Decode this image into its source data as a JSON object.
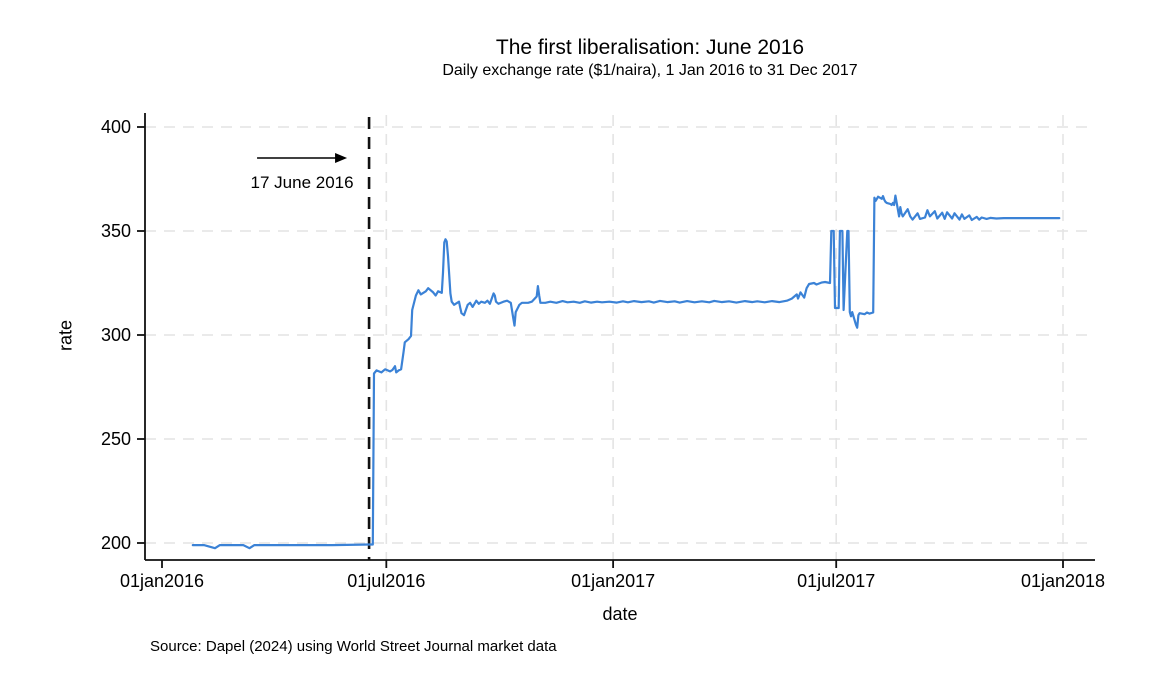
{
  "page": {
    "background": "#ffffff"
  },
  "chart_data": {
    "type": "line",
    "title": "The first liberalisation: June 2016",
    "subtitle": "Daily exchange rate ($1/naira), 1 Jan 2016 to 31 Dec 2017",
    "xlabel": "date",
    "ylabel": "rate",
    "source_note": "Source: Dapel (2024) using World Street Journal market data",
    "x_tick_labels": [
      "01jan2016",
      "01jul2016",
      "01jan2017",
      "01jul2017",
      "01jan2018"
    ],
    "x_tick_dates": [
      "2016-01-01",
      "2016-07-01",
      "2017-01-01",
      "2017-07-01",
      "2018-01-01"
    ],
    "x_tick_grid": [
      false,
      true,
      true,
      true,
      true
    ],
    "y_ticks": [
      200,
      250,
      300,
      350,
      400
    ],
    "ylim": [
      192,
      406
    ],
    "grid": true,
    "legend": "none",
    "colors": {
      "line": "#3b82d6",
      "grid": "#e4e4e4",
      "axis": "#111111",
      "event_line": "#111111",
      "text": "#000000"
    },
    "event_line": {
      "date": "2016-06-17",
      "style": "dashed"
    },
    "annotation": {
      "text": "17 June 2016",
      "arrow": "right"
    },
    "series": [
      {
        "name": "rate",
        "points": [
          [
            "2016-01-26",
            199
          ],
          [
            "2016-02-04",
            199
          ],
          [
            "2016-02-13",
            197.5
          ],
          [
            "2016-02-17",
            199
          ],
          [
            "2016-03-07",
            199
          ],
          [
            "2016-03-12",
            197.5
          ],
          [
            "2016-03-16",
            199
          ],
          [
            "2016-04-12",
            199
          ],
          [
            "2016-05-18",
            199
          ],
          [
            "2016-06-17",
            199.3
          ],
          [
            "2016-06-20",
            199.3
          ],
          [
            "2016-06-21",
            281.5
          ],
          [
            "2016-06-23",
            283
          ],
          [
            "2016-06-27",
            282
          ],
          [
            "2016-06-30",
            283.5
          ],
          [
            "2016-07-04",
            282.5
          ],
          [
            "2016-07-06",
            283.2
          ],
          [
            "2016-07-08",
            285
          ],
          [
            "2016-07-09",
            282
          ],
          [
            "2016-07-11",
            283
          ],
          [
            "2016-07-13",
            283.5
          ],
          [
            "2016-07-15",
            292
          ],
          [
            "2016-07-16",
            296.5
          ],
          [
            "2016-07-19",
            298
          ],
          [
            "2016-07-21",
            299.5
          ],
          [
            "2016-07-22",
            312
          ],
          [
            "2016-07-25",
            319
          ],
          [
            "2016-07-27",
            321.5
          ],
          [
            "2016-07-29",
            319.5
          ],
          [
            "2016-08-02",
            321
          ],
          [
            "2016-08-04",
            322.5
          ],
          [
            "2016-08-08",
            320.5
          ],
          [
            "2016-08-10",
            319
          ],
          [
            "2016-08-12",
            321
          ],
          [
            "2016-08-15",
            320.3
          ],
          [
            "2016-08-16",
            330
          ],
          [
            "2016-08-17",
            344.5
          ],
          [
            "2016-08-18",
            346
          ],
          [
            "2016-08-19",
            345
          ],
          [
            "2016-08-20",
            338
          ],
          [
            "2016-08-22",
            320
          ],
          [
            "2016-08-23",
            316
          ],
          [
            "2016-08-25",
            314.5
          ],
          [
            "2016-08-29",
            316
          ],
          [
            "2016-08-30",
            313
          ],
          [
            "2016-08-31",
            310.5
          ],
          [
            "2016-09-02",
            309.5
          ],
          [
            "2016-09-05",
            314.5
          ],
          [
            "2016-09-07",
            315.5
          ],
          [
            "2016-09-09",
            313.5
          ],
          [
            "2016-09-12",
            316.5
          ],
          [
            "2016-09-14",
            315
          ],
          [
            "2016-09-16",
            316
          ],
          [
            "2016-09-19",
            315.5
          ],
          [
            "2016-09-21",
            316.5
          ],
          [
            "2016-09-23",
            315
          ],
          [
            "2016-09-26",
            320
          ],
          [
            "2016-09-27",
            319
          ],
          [
            "2016-09-28",
            316
          ],
          [
            "2016-09-30",
            315
          ],
          [
            "2016-10-04",
            316
          ],
          [
            "2016-10-07",
            316.5
          ],
          [
            "2016-10-10",
            315.5
          ],
          [
            "2016-10-12",
            308
          ],
          [
            "2016-10-13",
            304.5
          ],
          [
            "2016-10-14",
            311
          ],
          [
            "2016-10-17",
            314.5
          ],
          [
            "2016-10-19",
            315.5
          ],
          [
            "2016-10-24",
            315.5
          ],
          [
            "2016-10-27",
            316
          ],
          [
            "2016-10-31",
            318.5
          ],
          [
            "2016-11-01",
            323.5
          ],
          [
            "2016-11-02",
            319
          ],
          [
            "2016-11-03",
            315.5
          ],
          [
            "2016-11-07",
            315.5
          ],
          [
            "2016-11-11",
            316
          ],
          [
            "2016-11-16",
            315.5
          ],
          [
            "2016-11-21",
            316.3
          ],
          [
            "2016-11-25",
            315.7
          ],
          [
            "2016-11-30",
            316
          ],
          [
            "2016-12-05",
            315.5
          ],
          [
            "2016-12-09",
            316.2
          ],
          [
            "2016-12-14",
            315.6
          ],
          [
            "2016-12-19",
            316
          ],
          [
            "2016-12-23",
            315.7
          ],
          [
            "2016-12-29",
            316
          ],
          [
            "2017-01-04",
            315.6
          ],
          [
            "2017-01-09",
            316.2
          ],
          [
            "2017-01-13",
            315.7
          ],
          [
            "2017-01-18",
            316.3
          ],
          [
            "2017-01-24",
            315.8
          ],
          [
            "2017-01-30",
            316.2
          ],
          [
            "2017-02-03",
            315.6
          ],
          [
            "2017-02-08",
            316.4
          ],
          [
            "2017-02-14",
            315.8
          ],
          [
            "2017-02-20",
            316.2
          ],
          [
            "2017-02-24",
            315.6
          ],
          [
            "2017-03-02",
            316.3
          ],
          [
            "2017-03-08",
            315.7
          ],
          [
            "2017-03-14",
            316.2
          ],
          [
            "2017-03-20",
            315.7
          ],
          [
            "2017-03-24",
            316.4
          ],
          [
            "2017-03-30",
            315.8
          ],
          [
            "2017-04-05",
            316.2
          ],
          [
            "2017-04-11",
            315.6
          ],
          [
            "2017-04-18",
            316.3
          ],
          [
            "2017-04-24",
            315.8
          ],
          [
            "2017-04-28",
            316.2
          ],
          [
            "2017-05-04",
            315.7
          ],
          [
            "2017-05-10",
            316.3
          ],
          [
            "2017-05-16",
            315.8
          ],
          [
            "2017-05-22",
            316.5
          ],
          [
            "2017-05-26",
            317.5
          ],
          [
            "2017-05-30",
            319.5
          ],
          [
            "2017-05-31",
            317.5
          ],
          [
            "2017-06-02",
            320.5
          ],
          [
            "2017-06-05",
            318
          ],
          [
            "2017-06-07",
            322.5
          ],
          [
            "2017-06-09",
            324.5
          ],
          [
            "2017-06-13",
            325
          ],
          [
            "2017-06-15",
            324.3
          ],
          [
            "2017-06-19",
            325.2
          ],
          [
            "2017-06-22",
            325.5
          ],
          [
            "2017-06-26",
            325
          ],
          [
            "2017-06-27",
            350
          ],
          [
            "2017-06-29",
            350
          ],
          [
            "2017-06-30",
            313
          ],
          [
            "2017-07-03",
            313
          ],
          [
            "2017-07-04",
            350
          ],
          [
            "2017-07-06",
            350
          ],
          [
            "2017-07-07",
            312
          ],
          [
            "2017-07-10",
            350
          ],
          [
            "2017-07-11",
            350
          ],
          [
            "2017-07-12",
            311
          ],
          [
            "2017-07-13",
            309
          ],
          [
            "2017-07-14",
            311
          ],
          [
            "2017-07-17",
            305
          ],
          [
            "2017-07-18",
            303.5
          ],
          [
            "2017-07-19",
            309.5
          ],
          [
            "2017-07-20",
            310.5
          ],
          [
            "2017-07-24",
            310
          ],
          [
            "2017-07-26",
            310.8
          ],
          [
            "2017-07-28",
            310.3
          ],
          [
            "2017-07-31",
            310.8
          ],
          [
            "2017-08-01",
            366
          ],
          [
            "2017-08-02",
            364.5
          ],
          [
            "2017-08-03",
            365.5
          ],
          [
            "2017-08-04",
            366.5
          ],
          [
            "2017-08-07",
            365.5
          ],
          [
            "2017-08-08",
            366.8
          ],
          [
            "2017-08-09",
            365
          ],
          [
            "2017-08-10",
            364
          ],
          [
            "2017-08-11",
            363.5
          ],
          [
            "2017-08-14",
            363
          ],
          [
            "2017-08-15",
            362.5
          ],
          [
            "2017-08-16",
            363.5
          ],
          [
            "2017-08-17",
            362.5
          ],
          [
            "2017-08-18",
            367
          ],
          [
            "2017-08-21",
            357
          ],
          [
            "2017-08-22",
            361.5
          ],
          [
            "2017-08-23",
            358.5
          ],
          [
            "2017-08-24",
            357
          ],
          [
            "2017-08-28",
            360.5
          ],
          [
            "2017-08-30",
            357
          ],
          [
            "2017-09-01",
            355.5
          ],
          [
            "2017-09-05",
            358.5
          ],
          [
            "2017-09-07",
            355.8
          ],
          [
            "2017-09-11",
            356.5
          ],
          [
            "2017-09-13",
            360
          ],
          [
            "2017-09-15",
            357
          ],
          [
            "2017-09-19",
            359.5
          ],
          [
            "2017-09-21",
            356
          ],
          [
            "2017-09-25",
            358.8
          ],
          [
            "2017-09-27",
            355.8
          ],
          [
            "2017-09-29",
            359
          ],
          [
            "2017-10-03",
            356
          ],
          [
            "2017-10-05",
            358.5
          ],
          [
            "2017-10-09",
            355.5
          ],
          [
            "2017-10-11",
            358
          ],
          [
            "2017-10-13",
            355.8
          ],
          [
            "2017-10-17",
            357.5
          ],
          [
            "2017-10-19",
            355.3
          ],
          [
            "2017-10-23",
            356.8
          ],
          [
            "2017-10-25",
            355.5
          ],
          [
            "2017-10-27",
            356.5
          ],
          [
            "2017-10-31",
            355.8
          ],
          [
            "2017-11-03",
            356.3
          ],
          [
            "2017-11-08",
            356
          ],
          [
            "2017-11-14",
            356.2
          ],
          [
            "2017-11-21",
            356.2
          ],
          [
            "2017-11-28",
            356.2
          ],
          [
            "2017-12-06",
            356.2
          ],
          [
            "2017-12-14",
            356.2
          ],
          [
            "2017-12-22",
            356.2
          ],
          [
            "2017-12-29",
            356.2
          ]
        ]
      }
    ]
  }
}
